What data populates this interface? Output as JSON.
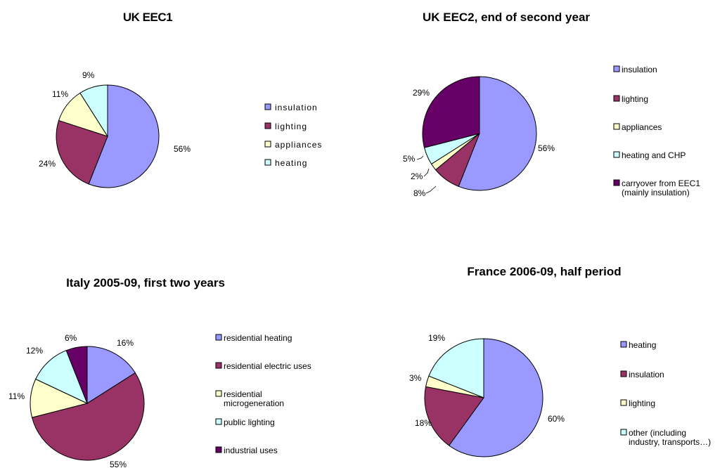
{
  "chart_data": [
    {
      "type": "pie",
      "title": "UK EEC1",
      "categories": [
        "insulation",
        "lighting",
        "appliances",
        "heating"
      ],
      "values": [
        56,
        24,
        11,
        9
      ],
      "value_labels": [
        "56%",
        "24%",
        "11%",
        "9%"
      ],
      "colors": [
        "#9999ff",
        "#993366",
        "#ffffcc",
        "#ccffff"
      ],
      "legend": "right"
    },
    {
      "type": "pie",
      "title": "UK EEC2, end of second year",
      "categories": [
        "insulation",
        "lighting",
        "appliances",
        "heating and CHP",
        "carryover from EEC1 (mainly insulation)"
      ],
      "legend_lines": [
        [
          "insulation"
        ],
        [
          "lighting"
        ],
        [
          "appliances"
        ],
        [
          "heating and CHP"
        ],
        [
          "carryover from EEC1",
          "(mainly insulation)"
        ]
      ],
      "values": [
        56,
        8,
        2,
        5,
        29
      ],
      "value_labels": [
        "56%",
        "8%",
        "2%",
        "5%",
        "29%"
      ],
      "colors": [
        "#9999ff",
        "#993366",
        "#ffffcc",
        "#ccffff",
        "#660066"
      ],
      "legend": "right"
    },
    {
      "type": "pie",
      "title": "Italy 2005-09, first two years",
      "categories": [
        "residential heating",
        "residential electric uses",
        "residential microgeneration",
        "public lighting",
        "industrial uses"
      ],
      "legend_lines": [
        [
          "residential heating"
        ],
        [
          "residential electric uses"
        ],
        [
          "residential",
          "microgeneration"
        ],
        [
          "public lighting"
        ],
        [
          "industrial uses"
        ]
      ],
      "values": [
        16,
        55,
        11,
        12,
        6
      ],
      "value_labels": [
        "16%",
        "55%",
        "11%",
        "12%",
        "6%"
      ],
      "colors": [
        "#9999ff",
        "#993366",
        "#ffffcc",
        "#ccffff",
        "#660066"
      ],
      "legend": "right"
    },
    {
      "type": "pie",
      "title": "France 2006-09, half period",
      "categories": [
        "heating",
        "insulation",
        "lighting",
        "other (including industry, transports…)"
      ],
      "legend_lines": [
        [
          "heating"
        ],
        [
          "insulation"
        ],
        [
          "lighting"
        ],
        [
          "other (including",
          "industry, transports…)"
        ]
      ],
      "values": [
        60,
        18,
        3,
        19
      ],
      "value_labels": [
        "60%",
        "18%",
        "3%",
        "19%"
      ],
      "colors": [
        "#9999ff",
        "#993366",
        "#ffffcc",
        "#ccffff"
      ],
      "legend": "right"
    }
  ]
}
